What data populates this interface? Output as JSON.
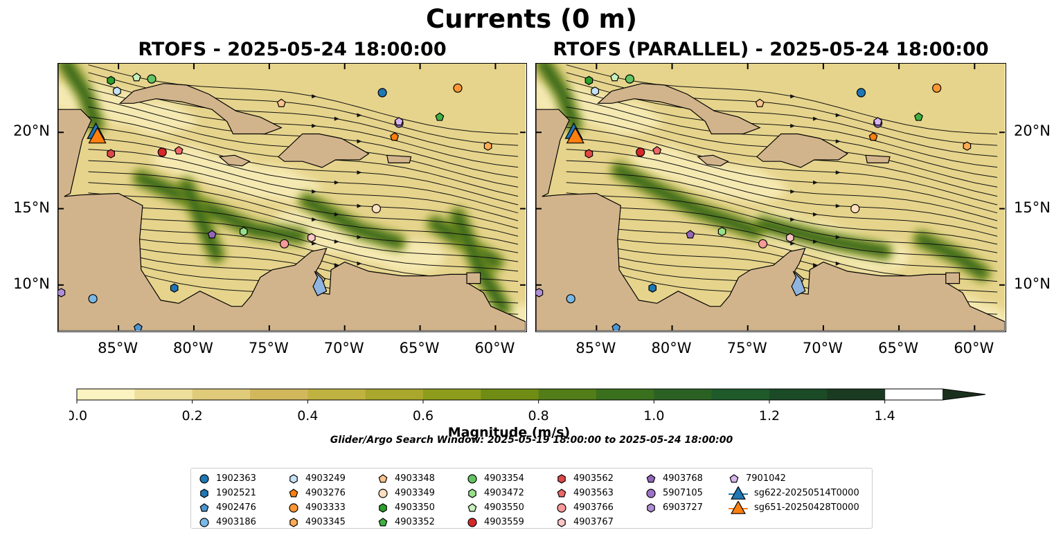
{
  "figure": {
    "title": "Currents (0 m)",
    "search_window": "Glider/Argo Search Window: 2025-05-19 18:00:00 to 2025-05-24 18:00:00"
  },
  "panels": [
    {
      "title": "RTOFS - 2025-05-24 18:00:00"
    },
    {
      "title": "RTOFS (PARALLEL) - 2025-05-24 18:00:00"
    }
  ],
  "map_extent": {
    "lon": [
      -89,
      -58
    ],
    "lat": [
      7,
      24.5
    ]
  },
  "axes": {
    "x_ticks": [
      "85°W",
      "80°W",
      "75°W",
      "70°W",
      "65°W",
      "60°W"
    ],
    "x_tick_values": [
      -85,
      -80,
      -75,
      -70,
      -65,
      -60
    ],
    "y_ticks": [
      "20°N",
      "15°N",
      "10°N"
    ],
    "y_tick_values": [
      20,
      15,
      10
    ]
  },
  "colorbar": {
    "label": "Magnitude (m/s)",
    "ticks": [
      "0.0",
      "0.2",
      "0.4",
      "0.6",
      "0.8",
      "1.0",
      "1.2",
      "1.4"
    ],
    "tick_values": [
      0,
      0.2,
      0.4,
      0.6,
      0.8,
      1.0,
      1.2,
      1.4
    ],
    "range": [
      0,
      1.5
    ],
    "extend": "max",
    "colors": [
      "#fbf3c0",
      "#eddf9b",
      "#e0cb7b",
      "#d1b85d",
      "#bfb240",
      "#a9a72c",
      "#8e9c1c",
      "#6f8d14",
      "#527d18",
      "#3a6f1d",
      "#2b6224",
      "#1f5a2a",
      "#1b4a26",
      "#1b3a22",
      "#1b2f1d"
    ]
  },
  "land_color": "#d2b48c",
  "lake_color": "#8fb4e0",
  "legend": {
    "columns": [
      [
        {
          "id": "1902363",
          "marker": "circle",
          "color": "#1f77b4"
        },
        {
          "id": "1902521",
          "marker": "hexagon",
          "color": "#1f77b4"
        },
        {
          "id": "4902476",
          "marker": "pentagon",
          "color": "#4d95d0"
        },
        {
          "id": "4903186",
          "marker": "circle",
          "color": "#7ab8e6"
        }
      ],
      [
        {
          "id": "4903249",
          "marker": "hexagon",
          "color": "#c6e4f8"
        },
        {
          "id": "4903276",
          "marker": "pentagon",
          "color": "#ff7f0e"
        },
        {
          "id": "4903333",
          "marker": "circle",
          "color": "#ff9633"
        },
        {
          "id": "4903345",
          "marker": "hexagon",
          "color": "#ffaa55"
        }
      ],
      [
        {
          "id": "4903348",
          "marker": "pentagon",
          "color": "#ffc48e"
        },
        {
          "id": "4903349",
          "marker": "circle",
          "color": "#ffe0bd"
        },
        {
          "id": "4903350",
          "marker": "hexagon",
          "color": "#2ca02c"
        },
        {
          "id": "4903352",
          "marker": "pentagon",
          "color": "#3fb043"
        }
      ],
      [
        {
          "id": "4903354",
          "marker": "circle",
          "color": "#62c462"
        },
        {
          "id": "4903472",
          "marker": "hexagon",
          "color": "#98df8a"
        },
        {
          "id": "4903550",
          "marker": "pentagon",
          "color": "#c7f0bd"
        },
        {
          "id": "4903559",
          "marker": "circle",
          "color": "#d62728"
        }
      ],
      [
        {
          "id": "4903562",
          "marker": "hexagon",
          "color": "#e04848"
        },
        {
          "id": "4903563",
          "marker": "pentagon",
          "color": "#ee6868"
        },
        {
          "id": "4903766",
          "marker": "circle",
          "color": "#f79a9a"
        },
        {
          "id": "4903767",
          "marker": "hexagon",
          "color": "#fcc6c6"
        }
      ],
      [
        {
          "id": "4903768",
          "marker": "pentagon",
          "color": "#9467bd"
        },
        {
          "id": "5907105",
          "marker": "circle",
          "color": "#9e72c8"
        },
        {
          "id": "6903727",
          "marker": "hexagon",
          "color": "#b08ed6"
        }
      ],
      [
        {
          "id": "7901042",
          "marker": "pentagon",
          "color": "#d7b5ef"
        },
        {
          "id": "sg622-20250514T0000",
          "marker": "triangle",
          "color": "#1f77b4"
        },
        {
          "id": "sg651-20250428T0000",
          "marker": "triangle",
          "color": "#ff7f0e"
        }
      ]
    ]
  },
  "floats": [
    {
      "id": "1902363",
      "lon": -67.5,
      "lat": 22.6
    },
    {
      "id": "1902521",
      "lon": -81.3,
      "lat": 9.8
    },
    {
      "id": "4902476",
      "lon": -83.7,
      "lat": 7.2
    },
    {
      "id": "4903186",
      "lon": -86.7,
      "lat": 9.1
    },
    {
      "id": "4903249",
      "lon": -85.1,
      "lat": 22.7
    },
    {
      "id": "4903276",
      "lon": -66.7,
      "lat": 19.7
    },
    {
      "id": "4903333",
      "lon": -62.5,
      "lat": 22.9
    },
    {
      "id": "4903345",
      "lon": -60.5,
      "lat": 19.1
    },
    {
      "id": "4903348",
      "lon": -74.2,
      "lat": 21.9
    },
    {
      "id": "4903349",
      "lon": -67.9,
      "lat": 15.0
    },
    {
      "id": "4903350",
      "lon": -85.5,
      "lat": 23.4
    },
    {
      "id": "4903352",
      "lon": -63.7,
      "lat": 21.0
    },
    {
      "id": "4903354",
      "lon": -82.8,
      "lat": 23.5
    },
    {
      "id": "4903472",
      "lon": -76.7,
      "lat": 13.5
    },
    {
      "id": "4903550",
      "lon": -83.8,
      "lat": 23.6
    },
    {
      "id": "4903559",
      "lon": -82.1,
      "lat": 18.7
    },
    {
      "id": "4903562",
      "lon": -85.5,
      "lat": 18.6
    },
    {
      "id": "4903563",
      "lon": -81.0,
      "lat": 18.8
    },
    {
      "id": "4903766",
      "lon": -74.0,
      "lat": 12.7
    },
    {
      "id": "4903767",
      "lon": -72.2,
      "lat": 13.1
    },
    {
      "id": "4903768",
      "lon": -78.8,
      "lat": 13.3
    },
    {
      "id": "5907105",
      "lon": -66.4,
      "lat": 20.6
    },
    {
      "id": "6903727",
      "lon": -88.8,
      "lat": 9.5
    },
    {
      "id": "7901042",
      "lon": -66.4,
      "lat": 20.7
    }
  ],
  "gliders": [
    {
      "id": "sg622-20250514T0000",
      "lon": -86.5,
      "lat": 20.0
    },
    {
      "id": "sg651-20250428T0000",
      "lon": -86.4,
      "lat": 19.7
    }
  ]
}
